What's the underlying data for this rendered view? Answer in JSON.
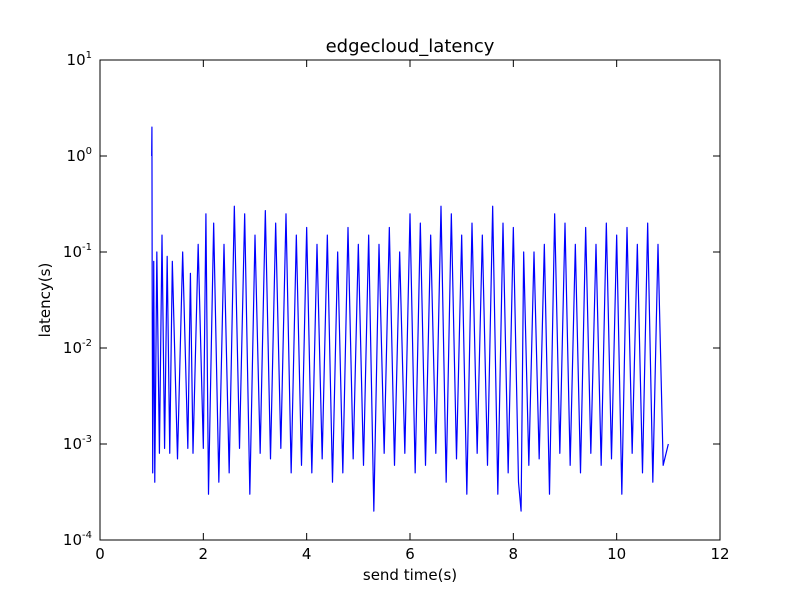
{
  "chart_data": {
    "type": "line",
    "title": "edgecloud_latency",
    "xlabel": "send time(s)",
    "ylabel": "latency(s)",
    "xlim": [
      0,
      12
    ],
    "ylim": [
      0.0001,
      10
    ],
    "yscale": "log",
    "grid": false,
    "x_ticks": [
      {
        "value": 0,
        "label": "0"
      },
      {
        "value": 2,
        "label": "2"
      },
      {
        "value": 4,
        "label": "4"
      },
      {
        "value": 6,
        "label": "6"
      },
      {
        "value": 8,
        "label": "8"
      },
      {
        "value": 10,
        "label": "10"
      },
      {
        "value": 12,
        "label": "12"
      }
    ],
    "y_ticks": [
      {
        "value": 0.0001,
        "base": "10",
        "exp": "-4"
      },
      {
        "value": 0.001,
        "base": "10",
        "exp": "-3"
      },
      {
        "value": 0.01,
        "base": "10",
        "exp": "-2"
      },
      {
        "value": 0.1,
        "base": "10",
        "exp": "-1"
      },
      {
        "value": 1,
        "base": "10",
        "exp": "0"
      },
      {
        "value": 10,
        "base": "10",
        "exp": "1"
      }
    ],
    "series": [
      {
        "color": "#0000ff",
        "x": [
          1.0,
          1.005,
          1.01,
          1.02,
          1.04,
          1.06,
          1.1,
          1.15,
          1.2,
          1.25,
          1.3,
          1.35,
          1.4,
          1.5,
          1.6,
          1.7,
          1.75,
          1.8,
          1.9,
          2.0,
          2.05,
          2.1,
          2.2,
          2.3,
          2.4,
          2.5,
          2.6,
          2.7,
          2.8,
          2.9,
          3.0,
          3.1,
          3.2,
          3.3,
          3.4,
          3.5,
          3.6,
          3.7,
          3.8,
          3.9,
          4.0,
          4.1,
          4.2,
          4.3,
          4.4,
          4.5,
          4.6,
          4.7,
          4.8,
          4.9,
          5.0,
          5.1,
          5.2,
          5.3,
          5.4,
          5.5,
          5.6,
          5.7,
          5.8,
          5.9,
          6.0,
          6.1,
          6.2,
          6.3,
          6.4,
          6.5,
          6.6,
          6.7,
          6.8,
          6.9,
          7.0,
          7.1,
          7.2,
          7.3,
          7.4,
          7.5,
          7.6,
          7.7,
          7.8,
          7.9,
          8.0,
          8.1,
          8.15,
          8.2,
          8.3,
          8.4,
          8.5,
          8.6,
          8.7,
          8.8,
          8.9,
          9.0,
          9.1,
          9.2,
          9.3,
          9.4,
          9.5,
          9.6,
          9.7,
          9.8,
          9.9,
          10.0,
          10.1,
          10.2,
          10.3,
          10.4,
          10.5,
          10.6,
          10.7,
          10.8,
          10.9,
          11.0
        ],
        "y": [
          1.0,
          2.0,
          0.05,
          0.0005,
          0.08,
          0.0004,
          0.1,
          0.0008,
          0.15,
          0.0009,
          0.09,
          0.0008,
          0.08,
          0.0007,
          0.1,
          0.0009,
          0.06,
          0.0008,
          0.12,
          0.0009,
          0.25,
          0.0003,
          0.2,
          0.0004,
          0.12,
          0.0005,
          0.3,
          0.0009,
          0.25,
          0.0003,
          0.15,
          0.0008,
          0.27,
          0.0007,
          0.2,
          0.0009,
          0.25,
          0.0005,
          0.15,
          0.0006,
          0.18,
          0.0005,
          0.12,
          0.0007,
          0.15,
          0.0004,
          0.1,
          0.0005,
          0.18,
          0.0007,
          0.12,
          0.0006,
          0.15,
          0.0002,
          0.12,
          0.0008,
          0.18,
          0.0006,
          0.1,
          0.0008,
          0.25,
          0.0005,
          0.2,
          0.0006,
          0.15,
          0.0008,
          0.3,
          0.0004,
          0.25,
          0.0007,
          0.15,
          0.0003,
          0.2,
          0.0008,
          0.15,
          0.0006,
          0.3,
          0.0003,
          0.2,
          0.0005,
          0.18,
          0.0004,
          0.0002,
          0.1,
          0.0006,
          0.1,
          0.0007,
          0.12,
          0.0003,
          0.25,
          0.0008,
          0.2,
          0.0006,
          0.12,
          0.0005,
          0.18,
          0.0008,
          0.12,
          0.0006,
          0.2,
          0.0007,
          0.15,
          0.0003,
          0.18,
          0.0008,
          0.12,
          0.0005,
          0.2,
          0.0004,
          0.12,
          0.0006,
          0.001
        ]
      }
    ]
  }
}
